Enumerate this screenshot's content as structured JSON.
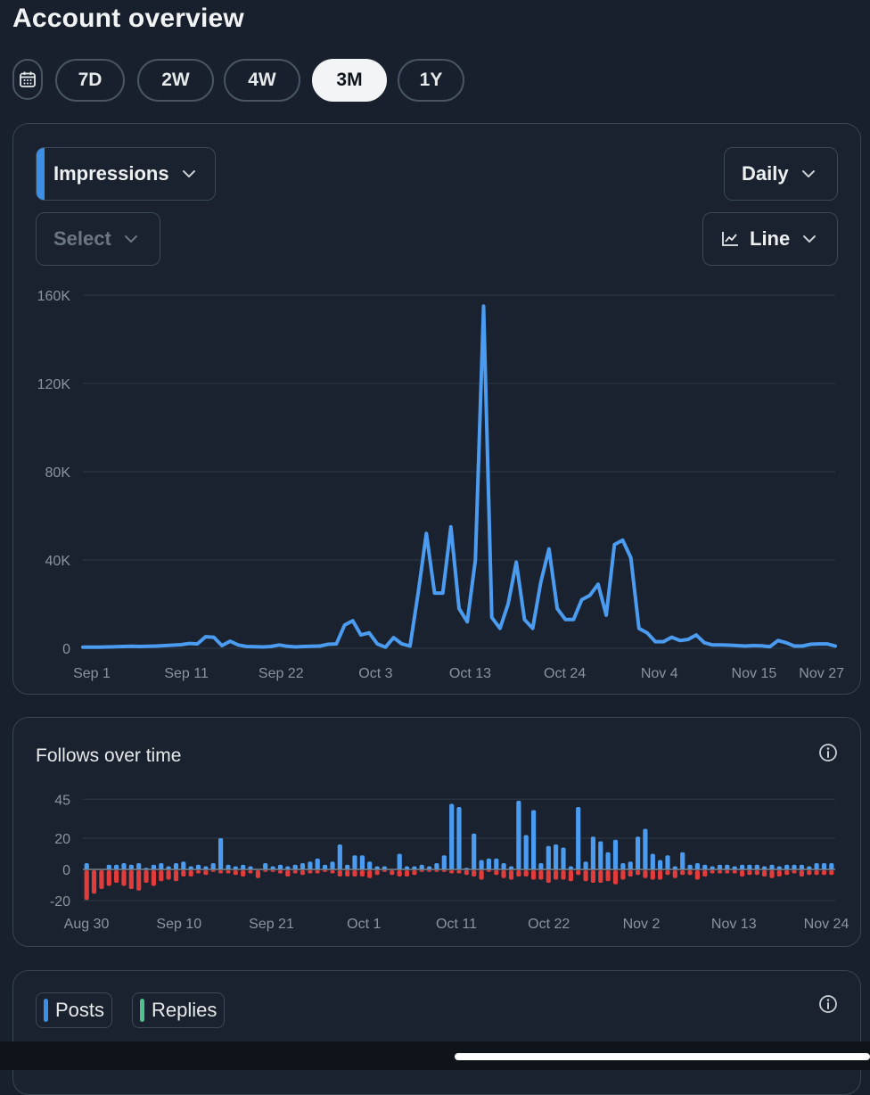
{
  "page": {
    "title": "Account overview"
  },
  "range": {
    "calendar_icon": "calendar-icon",
    "options": [
      "7D",
      "2W",
      "4W",
      "3M",
      "1Y"
    ],
    "selected": "3M"
  },
  "impressions_card": {
    "metric_label": "Impressions",
    "secondary_placeholder": "Select",
    "interval_label": "Daily",
    "chart_type_label": "Line",
    "accent_color": "#3d8fe6"
  },
  "follows_card": {
    "title": "Follows over time"
  },
  "content_card": {
    "tags": [
      {
        "label": "Posts",
        "color": "#3d8fe6"
      },
      {
        "label": "Replies",
        "color": "#4fc08d"
      }
    ]
  },
  "chart_data": [
    {
      "type": "line",
      "title": "Impressions",
      "series": [
        {
          "name": "Impressions",
          "values": [
            500,
            500,
            500,
            600,
            700,
            800,
            900,
            800,
            900,
            1000,
            1200,
            1400,
            1600,
            2200,
            2000,
            5200,
            5000,
            1200,
            3200,
            1500,
            800,
            700,
            600,
            800,
            1500,
            900,
            600,
            800,
            900,
            1000,
            1800,
            2000,
            10500,
            12500,
            6000,
            7000,
            2000,
            500,
            4800,
            2000,
            1000,
            25000,
            52000,
            25000,
            25000,
            55000,
            18000,
            12000,
            40000,
            155000,
            14000,
            9000,
            20000,
            39000,
            13000,
            9000,
            30000,
            45000,
            18000,
            13000,
            13000,
            22000,
            24000,
            29000,
            15000,
            47000,
            49000,
            41000,
            9000,
            7000,
            3000,
            3000,
            5000,
            3500,
            4000,
            6000,
            2500,
            1500,
            1500,
            1400,
            1200,
            1000,
            1200,
            1100,
            700,
            3500,
            2500,
            1000,
            1000,
            1800,
            2000,
            2000,
            1000
          ]
        }
      ],
      "x_tick_labels": [
        "Sep 1",
        "Sep 11",
        "Sep 22",
        "Oct 3",
        "Oct 13",
        "Oct 24",
        "Nov 4",
        "Nov 15",
        "Nov 27"
      ],
      "y_tick_labels": [
        "0",
        "40K",
        "80K",
        "120K",
        "160K"
      ],
      "ylim": [
        0,
        160000
      ],
      "color": "#4b9cf0",
      "grid": true
    },
    {
      "type": "bar",
      "title": "Follows over time",
      "series": [
        {
          "name": "Follows",
          "color": "#4b9cf0",
          "values": [
            4,
            0,
            0,
            3,
            3,
            4,
            3,
            4,
            1,
            3,
            4,
            2,
            4,
            5,
            2,
            3,
            2,
            4,
            20,
            3,
            2,
            3,
            2,
            0,
            4,
            2,
            3,
            2,
            3,
            4,
            5,
            7,
            3,
            5,
            16,
            3,
            9,
            9,
            5,
            2,
            2,
            0,
            10,
            2,
            2,
            3,
            2,
            4,
            9,
            42,
            40,
            1,
            23,
            6,
            7,
            7,
            4,
            2,
            44,
            22,
            38,
            4,
            15,
            16,
            14,
            2,
            40,
            5,
            21,
            18,
            11,
            19,
            4,
            5,
            21,
            26,
            10,
            6,
            9,
            2,
            11,
            3,
            4,
            3,
            2,
            3,
            3,
            2,
            3,
            3,
            3,
            2,
            3,
            2,
            3,
            3,
            3,
            2,
            4,
            4,
            4
          ]
        },
        {
          "name": "Unfollows",
          "color": "#e03c3c",
          "values": [
            -19,
            -15,
            -12,
            -10,
            -8,
            -10,
            -12,
            -13,
            -8,
            -10,
            -7,
            -6,
            -7,
            -4,
            -4,
            -2,
            -3,
            -1,
            -2,
            -2,
            -3,
            -4,
            -2,
            -5,
            -1,
            -1,
            -2,
            -4,
            -2,
            -3,
            -2,
            -2,
            -1,
            -2,
            -4,
            -4,
            -4,
            -4,
            -5,
            -3,
            -1,
            -3,
            -4,
            -4,
            -3,
            -1,
            -1,
            -1,
            -1,
            -2,
            -2,
            -3,
            -4,
            -6,
            -1,
            -3,
            -5,
            -6,
            -4,
            -4,
            -6,
            -6,
            -8,
            -6,
            -6,
            -7,
            -3,
            -7,
            -8,
            -8,
            -7,
            -9,
            -6,
            -4,
            -3,
            -5,
            -6,
            -6,
            -3,
            -5,
            -3,
            -3,
            -6,
            -4,
            -2,
            -2,
            -2,
            -2,
            -4,
            -3,
            -3,
            -4,
            -5,
            -4,
            -3,
            -2,
            -4,
            -3,
            -3,
            -3,
            -3
          ]
        }
      ],
      "x_tick_labels": [
        "Aug 30",
        "Sep 10",
        "Sep 21",
        "Oct 1",
        "Oct 11",
        "Oct 22",
        "Nov 2",
        "Nov 13",
        "Nov 24"
      ],
      "y_tick_labels": [
        "45",
        "20",
        "0",
        "-20"
      ],
      "ylim": [
        -20,
        45
      ],
      "grid": true
    }
  ]
}
